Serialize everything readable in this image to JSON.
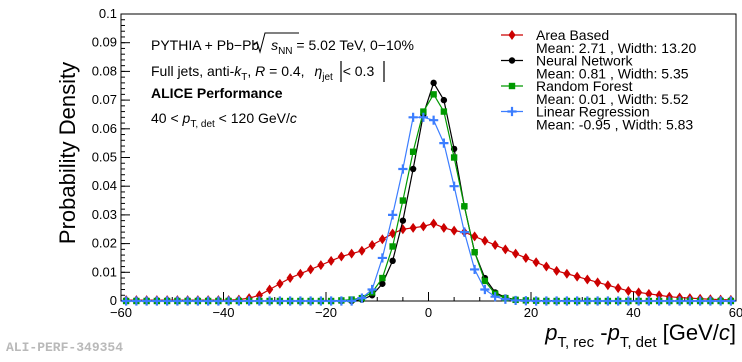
{
  "chart_data": {
    "type": "line",
    "title": "",
    "ylabel": "Probability Density",
    "xlabel_parts": {
      "p1": "p",
      "sub1": "T, rec",
      "mid": " -",
      "p2": "p",
      "sub2": "T, det",
      "unit_open": " [GeV/",
      "unit_c": "c",
      "unit_close": "]"
    },
    "xlim": [
      -60,
      60
    ],
    "ylim": [
      0,
      0.1
    ],
    "x_ticks": [
      -60,
      -40,
      -20,
      0,
      20,
      40,
      60
    ],
    "x_tick_labels": [
      "−60",
      "−40",
      "−20",
      "0",
      "20",
      "40",
      "60"
    ],
    "y_ticks": [
      0,
      0.01,
      0.02,
      0.03,
      0.04,
      0.05,
      0.06,
      0.07,
      0.08,
      0.09,
      0.1
    ],
    "y_tick_labels": [
      "0",
      "0.01",
      "0.02",
      "0.03",
      "0.04",
      "0.05",
      "0.06",
      "0.07",
      "0.08",
      "0.09",
      "0.1"
    ],
    "grid": false,
    "legend_position": "top-right",
    "series": [
      {
        "name": "Area Based",
        "stats": "Mean: 2.71 , Width: 13.20",
        "color": "#cc0000",
        "marker": "diamond",
        "x": [
          -59,
          -57,
          -55,
          -53,
          -51,
          -49,
          -47,
          -45,
          -43,
          -41,
          -39,
          -37,
          -35,
          -33,
          -31,
          -29,
          -27,
          -25,
          -23,
          -21,
          -19,
          -17,
          -15,
          -13,
          -11,
          -9,
          -7,
          -5,
          -3,
          -1,
          1,
          3,
          5,
          7,
          9,
          11,
          13,
          15,
          17,
          19,
          21,
          23,
          25,
          27,
          29,
          31,
          33,
          35,
          37,
          39,
          41,
          43,
          45,
          47,
          49,
          51,
          53,
          55,
          57,
          59
        ],
        "y": [
          0.0003,
          0.0003,
          0.0003,
          0.0003,
          0.0003,
          0.0003,
          0.0003,
          0.0003,
          0.0003,
          0.0003,
          0.0003,
          0.0005,
          0.001,
          0.002,
          0.004,
          0.006,
          0.008,
          0.0095,
          0.011,
          0.0125,
          0.014,
          0.0155,
          0.0165,
          0.0175,
          0.0195,
          0.0215,
          0.0235,
          0.025,
          0.0255,
          0.026,
          0.027,
          0.0255,
          0.0245,
          0.024,
          0.0225,
          0.021,
          0.0195,
          0.018,
          0.0165,
          0.015,
          0.0135,
          0.012,
          0.0105,
          0.0095,
          0.0085,
          0.0075,
          0.0065,
          0.0055,
          0.0045,
          0.0035,
          0.003,
          0.0025,
          0.002,
          0.0015,
          0.0012,
          0.001,
          0.0008,
          0.0006,
          0.0005,
          0.0004
        ]
      },
      {
        "name": "Neural Network",
        "stats": "Mean: 0.81 , Width: 5.35",
        "color": "#000000",
        "marker": "circle",
        "x": [
          -59,
          -57,
          -55,
          -53,
          -51,
          -49,
          -47,
          -45,
          -43,
          -41,
          -39,
          -37,
          -35,
          -33,
          -31,
          -29,
          -27,
          -25,
          -23,
          -21,
          -19,
          -17,
          -15,
          -13,
          -11,
          -9,
          -7,
          -5,
          -3,
          -1,
          1,
          3,
          5,
          7,
          9,
          11,
          13,
          15,
          17,
          19,
          21,
          23,
          25,
          27,
          29,
          31,
          33,
          35,
          37,
          39,
          41,
          43,
          45,
          47,
          49,
          51,
          53,
          55,
          57,
          59
        ],
        "y": [
          0,
          0,
          0,
          0,
          0,
          0,
          0,
          0,
          0,
          0,
          0,
          0,
          0,
          0,
          0,
          0,
          0,
          0,
          0,
          0,
          0,
          0,
          0,
          0.0005,
          0.002,
          0.006,
          0.014,
          0.028,
          0.046,
          0.065,
          0.076,
          0.07,
          0.053,
          0.033,
          0.017,
          0.008,
          0.003,
          0.0012,
          0.0005,
          0.0003,
          0.0002,
          0.0001,
          0.0001,
          0.0001,
          0.0001,
          0,
          0,
          0,
          0,
          0,
          0,
          0,
          0,
          0,
          0,
          0,
          0,
          0,
          0,
          0
        ]
      },
      {
        "name": "Random Forest",
        "stats": "Mean: 0.01 , Width: 5.52",
        "color": "#009900",
        "marker": "square",
        "x": [
          -59,
          -57,
          -55,
          -53,
          -51,
          -49,
          -47,
          -45,
          -43,
          -41,
          -39,
          -37,
          -35,
          -33,
          -31,
          -29,
          -27,
          -25,
          -23,
          -21,
          -19,
          -17,
          -15,
          -13,
          -11,
          -9,
          -7,
          -5,
          -3,
          -1,
          1,
          3,
          5,
          7,
          9,
          11,
          13,
          15,
          17,
          19,
          21,
          23,
          25,
          27,
          29,
          31,
          33,
          35,
          37,
          39,
          41,
          43,
          45,
          47,
          49,
          51,
          53,
          55,
          57,
          59
        ],
        "y": [
          0,
          0,
          0,
          0,
          0,
          0,
          0,
          0,
          0,
          0,
          0,
          0,
          0,
          0,
          0,
          0,
          0,
          0,
          0,
          0,
          0,
          0.0002,
          0.0005,
          0.001,
          0.003,
          0.008,
          0.019,
          0.035,
          0.052,
          0.066,
          0.072,
          0.066,
          0.05,
          0.033,
          0.017,
          0.007,
          0.0025,
          0.001,
          0.0004,
          0.0002,
          0.0001,
          0,
          0,
          0,
          0,
          0,
          0,
          0,
          0,
          0,
          0,
          0,
          0,
          0,
          0,
          0,
          0,
          0,
          0,
          0
        ]
      },
      {
        "name": "Linear Regression",
        "stats": "Mean: -0.95 , Width: 5.83",
        "color": "#3b7dff",
        "marker": "cross",
        "x": [
          -59,
          -57,
          -55,
          -53,
          -51,
          -49,
          -47,
          -45,
          -43,
          -41,
          -39,
          -37,
          -35,
          -33,
          -31,
          -29,
          -27,
          -25,
          -23,
          -21,
          -19,
          -17,
          -15,
          -13,
          -11,
          -9,
          -7,
          -5,
          -3,
          -1,
          1,
          3,
          5,
          7,
          9,
          11,
          13,
          15,
          17,
          19,
          21,
          23,
          25,
          27,
          29,
          31,
          33,
          35,
          37,
          39,
          41,
          43,
          45,
          47,
          49,
          51,
          53,
          55,
          57,
          59
        ],
        "y": [
          0,
          0,
          0,
          0,
          0,
          0,
          0,
          0,
          0,
          0,
          0,
          0,
          0,
          0,
          0,
          0,
          0,
          0,
          0,
          0,
          0,
          0,
          0,
          0.001,
          0.004,
          0.015,
          0.03,
          0.046,
          0.064,
          0.064,
          0.063,
          0.055,
          0.04,
          0.024,
          0.011,
          0.004,
          0.0015,
          0.0006,
          0.0002,
          0.0001,
          0,
          0,
          0,
          0,
          0,
          0,
          0,
          0,
          0,
          0,
          0,
          0,
          0,
          0,
          0,
          0,
          0,
          0,
          0,
          0
        ]
      }
    ],
    "annotations": {
      "line1_prefix": "PYTHIA + Pb",
      "line1_dash": "−",
      "line1_pb": "Pb ",
      "line1_sqrt_s": "s",
      "line1_sqrt_sub": "NN",
      "line1_suffix": " = 5.02 TeV, 0−10%",
      "line2_prefix": "Full jets, anti-",
      "line2_k": "k",
      "line2_k_sub": "T",
      "line2_mid": ", ",
      "line2_R": "R",
      "line2_r_val": " = 0.4, ",
      "line2_eta": "η",
      "line2_eta_sub": "jet",
      "line2_suffix": " < 0.3",
      "line3": "ALICE Performance",
      "line4_prefix": "40 < ",
      "line4_p": "p",
      "line4_p_sub": "T, det",
      "line4_mid": " < 120 GeV/",
      "line4_c": "c"
    },
    "footer": "ALI-PERF-349354"
  }
}
